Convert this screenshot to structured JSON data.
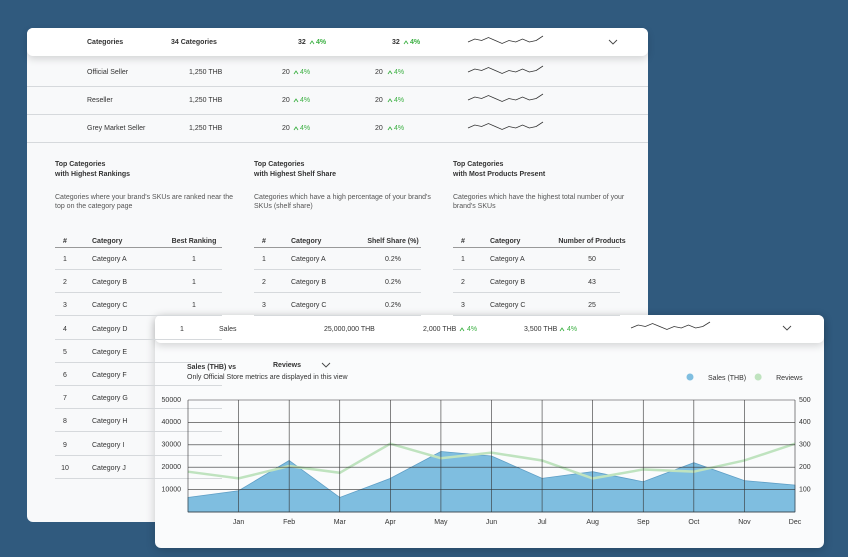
{
  "back_panel": {
    "header": {
      "name": "Categories",
      "count": "34 Categories",
      "metric1": "32",
      "change1": "4%",
      "metric2": "32",
      "change2": "4%"
    },
    "rows": [
      {
        "name": "Official Seller",
        "price": "1,250 THB",
        "metric1": "20",
        "change1": "4%",
        "metric2": "20",
        "change2": "4%"
      },
      {
        "name": "Reseller",
        "price": "1,250 THB",
        "metric1": "20",
        "change1": "4%",
        "metric2": "20",
        "change2": "4%"
      },
      {
        "name": "Grey Market Seller",
        "price": "1,250 THB",
        "metric1": "20",
        "change1": "4%",
        "metric2": "20",
        "change2": "4%"
      }
    ],
    "sections": [
      {
        "title_line1": "Top Categories",
        "title_line2": "with Highest Rankings",
        "description": "Categories where your brand's SKUs are ranked near the top on the category page",
        "columns": [
          "#",
          "Category",
          "Best Ranking"
        ],
        "rows": [
          [
            "1",
            "Category A",
            "1"
          ],
          [
            "2",
            "Category B",
            "1"
          ],
          [
            "3",
            "Category C",
            "1"
          ],
          [
            "4",
            "Category D"
          ],
          [
            "5",
            "Category E"
          ],
          [
            "6",
            "Category F"
          ],
          [
            "7",
            "Category G"
          ],
          [
            "8",
            "Category H"
          ],
          [
            "9",
            "Category I"
          ],
          [
            "10",
            "Category J"
          ]
        ]
      },
      {
        "title_line1": "Top Categories",
        "title_line2": "with Highest Shelf Share",
        "description": "Categories which have a high percentage of your brand's SKUs (shelf share)",
        "columns": [
          "#",
          "Category",
          "Shelf Share (%)"
        ],
        "rows": [
          [
            "1",
            "Category A",
            "0.2%"
          ],
          [
            "2",
            "Category B",
            "0.2%"
          ],
          [
            "3",
            "Category C",
            "0.2%"
          ]
        ]
      },
      {
        "title_line1": "Top Categories",
        "title_line2": "with Most Products Present",
        "description": "Categories which have the highest total number of your brand's SKUs",
        "columns": [
          "#",
          "Category",
          "Number of Products"
        ],
        "rows": [
          [
            "1",
            "Category A",
            "50"
          ],
          [
            "2",
            "Category B",
            "43"
          ],
          [
            "3",
            "Category C",
            "25"
          ]
        ]
      }
    ]
  },
  "front_panel": {
    "header": {
      "rank": "1",
      "name": "Sales",
      "total": "25,000,000 THB",
      "metric1": "2,000 THB",
      "change1": "4%",
      "metric2": "3,500 THB",
      "change2": "4%"
    }
  },
  "chart_data": {
    "type": "area",
    "title": "Sales (THB) vs",
    "metric_selector": "Reviews",
    "subtitle": "Only Official Store metrics are displayed in this view",
    "categories": [
      null,
      "Jan",
      "Feb",
      "Mar",
      "Apr",
      "May",
      "Jun",
      "Jul",
      "Aug",
      "Sep",
      "Oct",
      "Nov",
      "Dec"
    ],
    "series": [
      {
        "name": "Sales (THB)",
        "color": "#7fbee0",
        "values": [
          6500,
          9500,
          23000,
          6500,
          15000,
          27000,
          25000,
          15000,
          18000,
          13500,
          22000,
          14000,
          12000
        ]
      },
      {
        "name": "Reviews",
        "color": "#bfe3bf",
        "type": "line",
        "axis": "y2",
        "values": [
          180,
          150,
          205,
          175,
          305,
          240,
          265,
          230,
          150,
          190,
          180,
          230,
          305
        ]
      }
    ],
    "ylim": [
      0,
      50000
    ],
    "yticks": [
      10000,
      20000,
      30000,
      40000,
      50000
    ],
    "y2lim": [
      0,
      500
    ],
    "y2ticks": [
      100,
      200,
      300,
      400,
      500
    ],
    "grid": true,
    "legend": "top-right"
  }
}
